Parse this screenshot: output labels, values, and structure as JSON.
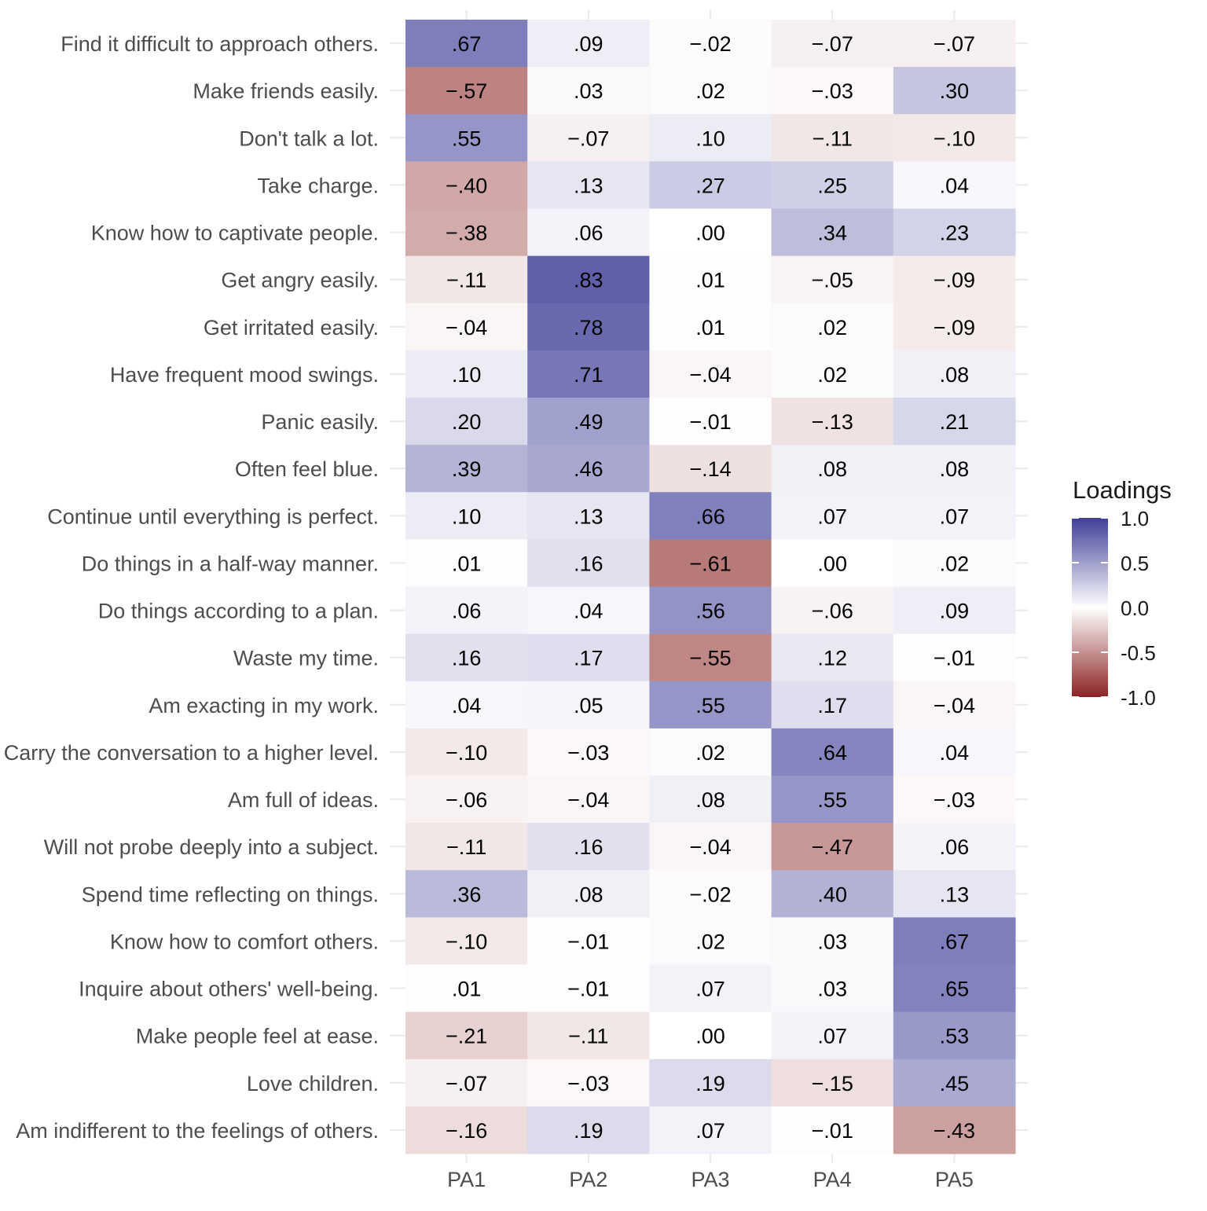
{
  "chart_data": {
    "type": "heatmap",
    "title": "",
    "xlabel": "",
    "ylabel": "",
    "x": [
      "PA1",
      "PA2",
      "PA3",
      "PA4",
      "PA5"
    ],
    "y": [
      "Find it difficult to approach others.",
      "Make friends easily.",
      "Don't talk a lot.",
      "Take charge.",
      "Know how to captivate people.",
      "Get angry easily.",
      "Get irritated easily.",
      "Have frequent mood swings.",
      "Panic easily.",
      "Often feel blue.",
      "Continue until everything is perfect.",
      "Do things in a half-way manner.",
      "Do things according to a plan.",
      "Waste my time.",
      "Am exacting in my work.",
      "Carry the conversation to a higher level.",
      "Am full of ideas.",
      "Will not probe deeply into a subject.",
      "Spend time reflecting on things.",
      "Know how to comfort others.",
      "Inquire about others' well-being.",
      "Make people feel at ease.",
      "Love children.",
      "Am indifferent to the feelings of others."
    ],
    "values": [
      [
        0.67,
        0.09,
        -0.02,
        -0.07,
        -0.07
      ],
      [
        -0.57,
        0.03,
        0.02,
        -0.03,
        0.3
      ],
      [
        0.55,
        -0.07,
        0.1,
        -0.11,
        -0.1
      ],
      [
        -0.4,
        0.13,
        0.27,
        0.25,
        0.04
      ],
      [
        -0.38,
        0.06,
        0.0,
        0.34,
        0.23
      ],
      [
        -0.11,
        0.83,
        0.01,
        -0.05,
        -0.09
      ],
      [
        -0.04,
        0.78,
        0.01,
        0.02,
        -0.09
      ],
      [
        0.1,
        0.71,
        -0.04,
        0.02,
        0.08
      ],
      [
        0.2,
        0.49,
        -0.01,
        -0.13,
        0.21
      ],
      [
        0.39,
        0.46,
        -0.14,
        0.08,
        0.08
      ],
      [
        0.1,
        0.13,
        0.66,
        0.07,
        0.07
      ],
      [
        0.01,
        0.16,
        -0.61,
        0.0,
        0.02
      ],
      [
        0.06,
        0.04,
        0.56,
        -0.06,
        0.09
      ],
      [
        0.16,
        0.17,
        -0.55,
        0.12,
        -0.01
      ],
      [
        0.04,
        0.05,
        0.55,
        0.17,
        -0.04
      ],
      [
        -0.1,
        -0.03,
        0.02,
        0.64,
        0.04
      ],
      [
        -0.06,
        -0.04,
        0.08,
        0.55,
        -0.03
      ],
      [
        -0.11,
        0.16,
        -0.04,
        -0.47,
        0.06
      ],
      [
        0.36,
        0.08,
        -0.02,
        0.4,
        0.13
      ],
      [
        -0.1,
        -0.01,
        0.02,
        0.03,
        0.67
      ],
      [
        0.01,
        -0.01,
        0.07,
        0.03,
        0.65
      ],
      [
        -0.21,
        -0.11,
        0.0,
        0.07,
        0.53
      ],
      [
        -0.07,
        -0.03,
        0.19,
        -0.15,
        0.45
      ],
      [
        -0.16,
        0.19,
        0.07,
        -0.01,
        -0.43
      ]
    ],
    "cell_labels": [
      [
        ".67",
        ".09",
        "−.02",
        "−.07",
        "−.07"
      ],
      [
        "−.57",
        ".03",
        ".02",
        "−.03",
        ".30"
      ],
      [
        ".55",
        "−.07",
        ".10",
        "−.11",
        "−.10"
      ],
      [
        "−.40",
        ".13",
        ".27",
        ".25",
        ".04"
      ],
      [
        "−.38",
        ".06",
        ".00",
        ".34",
        ".23"
      ],
      [
        "−.11",
        ".83",
        ".01",
        "−.05",
        "−.09"
      ],
      [
        "−.04",
        ".78",
        ".01",
        ".02",
        "−.09"
      ],
      [
        ".10",
        ".71",
        "−.04",
        ".02",
        ".08"
      ],
      [
        ".20",
        ".49",
        "−.01",
        "−.13",
        ".21"
      ],
      [
        ".39",
        ".46",
        "−.14",
        ".08",
        ".08"
      ],
      [
        ".10",
        ".13",
        ".66",
        ".07",
        ".07"
      ],
      [
        ".01",
        ".16",
        "−.61",
        ".00",
        ".02"
      ],
      [
        ".06",
        ".04",
        ".56",
        "−.06",
        ".09"
      ],
      [
        ".16",
        ".17",
        "−.55",
        ".12",
        "−.01"
      ],
      [
        ".04",
        ".05",
        ".55",
        ".17",
        "−.04"
      ],
      [
        "−.10",
        "−.03",
        ".02",
        ".64",
        ".04"
      ],
      [
        "−.06",
        "−.04",
        ".08",
        ".55",
        "−.03"
      ],
      [
        "−.11",
        ".16",
        "−.04",
        "−.47",
        ".06"
      ],
      [
        ".36",
        ".08",
        "−.02",
        ".40",
        ".13"
      ],
      [
        "−.10",
        "−.01",
        ".02",
        ".03",
        ".67"
      ],
      [
        ".01",
        "−.01",
        ".07",
        ".03",
        ".65"
      ],
      [
        "−.21",
        "−.11",
        ".00",
        ".07",
        ".53"
      ],
      [
        "−.07",
        "−.03",
        ".19",
        "−.15",
        ".45"
      ],
      [
        "−.16",
        ".19",
        ".07",
        "−.01",
        "−.43"
      ]
    ],
    "color_scale": {
      "min": -1.0,
      "max": 1.0,
      "low_color": "#8b2323",
      "mid_color": "#ffffff",
      "high_color": "#3f3f99"
    },
    "legend": {
      "title": "Loadings",
      "position": "right",
      "ticks": [
        1.0,
        0.5,
        0.0,
        -0.5,
        -1.0
      ],
      "tick_labels": [
        "1.0",
        "0.5",
        "0.0",
        "-0.5",
        "-1.0"
      ]
    },
    "grid": true
  }
}
